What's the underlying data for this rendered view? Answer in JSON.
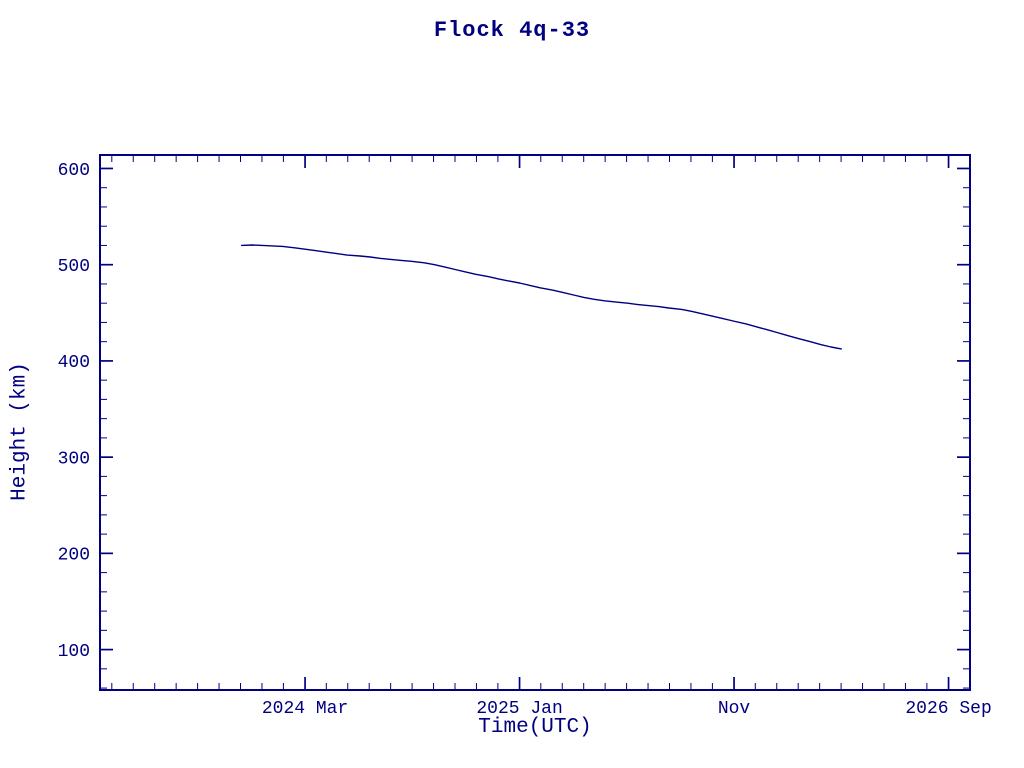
{
  "page": {
    "background": "#ffffff",
    "accent_color": "#000080"
  },
  "chart_data": {
    "type": "line",
    "title": "Flock 4q-33",
    "xlabel": "Time(UTC)",
    "ylabel": "Height (km)",
    "line_color": "#000080",
    "frame_color": "#000080",
    "grid": false,
    "legend": "none",
    "xlim": [
      2023.37,
      2026.75
    ],
    "ylim": [
      58,
      614
    ],
    "x_ticks_major": [
      {
        "value": 2024.1667,
        "label": "2024 Mar"
      },
      {
        "value": 2025.0,
        "label": "2025 Jan"
      },
      {
        "value": 2025.8333,
        "label": "Nov"
      },
      {
        "value": 2026.6667,
        "label": "2026 Sep"
      }
    ],
    "x_minor_step_years": 0.0833333,
    "y_ticks_major": [
      100,
      200,
      300,
      400,
      500,
      600
    ],
    "y_minor_step": 20,
    "series": [
      {
        "name": "Flock 4q-33 height (km)",
        "x": [
          2023.92,
          2023.96,
          2024.0,
          2024.04,
          2024.08,
          2024.13,
          2024.17,
          2024.21,
          2024.25,
          2024.29,
          2024.33,
          2024.38,
          2024.42,
          2024.46,
          2024.5,
          2024.54,
          2024.58,
          2024.63,
          2024.67,
          2024.71,
          2024.75,
          2024.79,
          2024.83,
          2024.88,
          2024.92,
          2024.96,
          2025.0,
          2025.04,
          2025.08,
          2025.13,
          2025.17,
          2025.21,
          2025.25,
          2025.29,
          2025.33,
          2025.38,
          2025.42,
          2025.46,
          2025.5,
          2025.54,
          2025.58,
          2025.63,
          2025.67,
          2025.71,
          2025.75,
          2025.79,
          2025.83,
          2025.88,
          2025.92,
          2025.96,
          2026.0,
          2026.04,
          2026.08,
          2026.13,
          2026.17,
          2026.21,
          2026.25
        ],
        "y": [
          520,
          520.5,
          520,
          519.5,
          519,
          517.5,
          516,
          514.5,
          513,
          511.5,
          510,
          509,
          508,
          506.5,
          505.5,
          504.5,
          503.5,
          502,
          500,
          497.5,
          495,
          492.5,
          490,
          487.5,
          485,
          483,
          481,
          478.5,
          476,
          473.5,
          471,
          468.5,
          466,
          464,
          462.5,
          461,
          460,
          458.5,
          457.5,
          456.5,
          455,
          453.5,
          451.5,
          449,
          446.5,
          444,
          441.5,
          438.5,
          435.5,
          432.5,
          429.5,
          426.5,
          423.5,
          420,
          417,
          414.5,
          412.5
        ]
      }
    ]
  }
}
